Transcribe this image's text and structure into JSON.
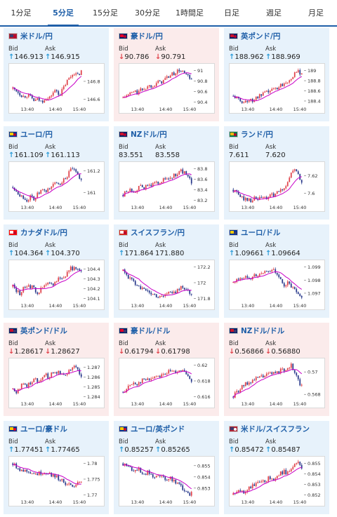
{
  "tabs": [
    "1分足",
    "5分足",
    "15分足",
    "30分足",
    "1時間足",
    "日足",
    "週足",
    "月足"
  ],
  "active_tab": 1,
  "bid_label": "Bid",
  "ask_label": "Ask",
  "colors": {
    "accent": "#1f5fa8",
    "up_arrow": "#2a9bd8",
    "down_arrow": "#e0424a",
    "card_up": "#e7f2fb",
    "card_down": "#fbebeb",
    "candle_up": "#e0424a",
    "candle_down": "#2a3a8c",
    "ma_line": "#c800c8"
  },
  "cards": [
    {
      "pair": "米ドル/円",
      "dir": "up",
      "bid": "146.913",
      "ask": "146.915",
      "bid_arrow": "up",
      "ask_arrow": "up",
      "flag": "us-jp",
      "ticks": [
        "146.8",
        "146.6"
      ],
      "times": [
        "13:40",
        "14:40",
        "15:40"
      ],
      "trend": [
        146.72,
        146.7,
        146.66,
        146.63,
        146.65,
        146.62,
        146.58,
        146.6,
        146.57,
        146.62,
        146.6,
        146.67,
        146.7,
        146.65,
        146.72,
        146.8,
        146.85,
        146.9,
        146.86,
        146.92
      ]
    },
    {
      "pair": "豪ドル/円",
      "dir": "down",
      "bid": "90.786",
      "ask": "90.791",
      "bid_arrow": "down",
      "ask_arrow": "down",
      "flag": "au-jp",
      "ticks": [
        "91",
        "90.8",
        "90.6",
        "90.4"
      ],
      "times": [
        "13:40",
        "14:40",
        "15:40"
      ],
      "trend": [
        90.48,
        90.52,
        90.56,
        90.6,
        90.58,
        90.63,
        90.66,
        90.7,
        90.72,
        90.75,
        90.78,
        90.8,
        90.86,
        90.9,
        90.94,
        90.98,
        91.0,
        90.95,
        90.88,
        90.8
      ]
    },
    {
      "pair": "英ポンド/円",
      "dir": "up",
      "bid": "188.962",
      "ask": "188.969",
      "bid_arrow": "up",
      "ask_arrow": "up",
      "flag": "gb-jp",
      "ticks": [
        "189",
        "188.8",
        "188.6",
        "188.4"
      ],
      "times": [
        "13:40",
        "14:40",
        "15:40"
      ],
      "trend": [
        188.5,
        188.45,
        188.4,
        188.38,
        188.42,
        188.4,
        188.45,
        188.48,
        188.52,
        188.55,
        188.6,
        188.62,
        188.66,
        188.7,
        188.75,
        188.8,
        188.86,
        188.92,
        188.97,
        188.96
      ]
    },
    {
      "pair": "ユーロ/円",
      "dir": "up",
      "bid": "161.109",
      "ask": "161.113",
      "bid_arrow": "up",
      "ask_arrow": "up",
      "flag": "eu-jp",
      "ticks": [
        "161.2",
        "161"
      ],
      "times": [
        "13:40",
        "14:40",
        "15:40"
      ],
      "trend": [
        161.05,
        161.02,
        160.98,
        160.95,
        160.93,
        160.96,
        160.94,
        160.99,
        161.02,
        161.0,
        161.04,
        161.06,
        161.1,
        161.08,
        161.12,
        161.15,
        161.2,
        161.22,
        161.15,
        161.11
      ]
    },
    {
      "pair": "NZドル/円",
      "dir": "up",
      "bid": "83.551",
      "ask": "83.558",
      "bid_arrow": "",
      "ask_arrow": "",
      "flag": "nz-jp",
      "ticks": [
        "83.8",
        "83.6",
        "83.4",
        "83.2"
      ],
      "times": [
        "13:40",
        "14:40",
        "15:40"
      ],
      "trend": [
        83.3,
        83.36,
        83.4,
        83.38,
        83.42,
        83.45,
        83.44,
        83.48,
        83.5,
        83.52,
        83.55,
        83.58,
        83.6,
        83.62,
        83.66,
        83.7,
        83.76,
        83.72,
        83.62,
        83.55
      ]
    },
    {
      "pair": "ランド/円",
      "dir": "up",
      "bid": "7.611",
      "ask": "7.620",
      "bid_arrow": "",
      "ask_arrow": "",
      "flag": "za-jp",
      "ticks": [
        "7.62",
        "7.6"
      ],
      "times": [
        "13:40",
        "14:40",
        "15:40"
      ],
      "trend": [
        7.604,
        7.6,
        7.596,
        7.594,
        7.593,
        7.592,
        7.594,
        7.593,
        7.595,
        7.594,
        7.596,
        7.598,
        7.6,
        7.602,
        7.606,
        7.612,
        7.622,
        7.628,
        7.62,
        7.612
      ]
    },
    {
      "pair": "カナダドル/円",
      "dir": "up",
      "bid": "104.364",
      "ask": "104.370",
      "bid_arrow": "up",
      "ask_arrow": "up",
      "flag": "ca-jp",
      "ticks": [
        "104.4",
        "104.3",
        "104.2",
        "104.1"
      ],
      "times": [
        "13:40",
        "14:40",
        "15:40"
      ],
      "trend": [
        104.22,
        104.18,
        104.15,
        104.2,
        104.24,
        104.22,
        104.19,
        104.16,
        104.2,
        104.23,
        104.25,
        104.24,
        104.28,
        104.32,
        104.3,
        104.36,
        104.42,
        104.4,
        104.38,
        104.36
      ]
    },
    {
      "pair": "スイスフラン/円",
      "dir": "up",
      "bid": "171.864",
      "ask": "171.880",
      "bid_arrow": "up",
      "ask_arrow": "",
      "flag": "ch-jp",
      "ticks": [
        "172.2",
        "172",
        "171.8"
      ],
      "times": [
        "13:40",
        "14:40",
        "15:40"
      ],
      "trend": [
        172.15,
        172.1,
        172.05,
        172.0,
        171.98,
        171.94,
        171.9,
        171.88,
        171.86,
        171.84,
        171.82,
        171.84,
        171.86,
        171.88,
        171.86,
        171.9,
        171.96,
        171.92,
        171.88,
        171.86
      ]
    },
    {
      "pair": "ユーロ/ドル",
      "dir": "up",
      "bid": "1.09661",
      "ask": "1.09664",
      "bid_arrow": "up",
      "ask_arrow": "up",
      "flag": "eu-us",
      "ticks": [
        "1.099",
        "1.098",
        "1.097"
      ],
      "times": [
        "13:40",
        "14:40",
        "15:40"
      ],
      "trend": [
        1.0978,
        1.098,
        1.0982,
        1.0981,
        1.0983,
        1.0982,
        1.0984,
        1.0983,
        1.0985,
        1.0987,
        1.0986,
        1.099,
        1.0984,
        1.098,
        1.0976,
        1.0978,
        1.0975,
        1.0972,
        1.0968,
        1.0966
      ]
    },
    {
      "pair": "英ポンド/ドル",
      "dir": "down",
      "bid": "1.28617",
      "ask": "1.28627",
      "bid_arrow": "down",
      "ask_arrow": "down",
      "flag": "gb-us",
      "ticks": [
        "1.287",
        "1.286",
        "1.285",
        "1.284"
      ],
      "times": [
        "13:40",
        "14:40",
        "15:40"
      ],
      "trend": [
        1.2848,
        1.2845,
        1.285,
        1.2853,
        1.2851,
        1.2855,
        1.2858,
        1.2856,
        1.286,
        1.2862,
        1.286,
        1.2864,
        1.2866,
        1.2864,
        1.2862,
        1.2865,
        1.2868,
        1.2872,
        1.2866,
        1.2862
      ]
    },
    {
      "pair": "豪ドル/ドル",
      "dir": "down",
      "bid": "0.61794",
      "ask": "0.61798",
      "bid_arrow": "down",
      "ask_arrow": "down",
      "flag": "au-us",
      "ticks": [
        "0.62",
        "0.618",
        "0.616"
      ],
      "times": [
        "13:40",
        "14:40",
        "15:40"
      ],
      "trend": [
        0.6166,
        0.617,
        0.6174,
        0.6178,
        0.6176,
        0.618,
        0.6182,
        0.6181,
        0.6184,
        0.6186,
        0.6187,
        0.6188,
        0.619,
        0.6192,
        0.6191,
        0.6193,
        0.6195,
        0.619,
        0.6184,
        0.6179
      ]
    },
    {
      "pair": "NZドル/ドル",
      "dir": "down",
      "bid": "0.56866",
      "ask": "0.56880",
      "bid_arrow": "down",
      "ask_arrow": "down",
      "flag": "nz-us",
      "ticks": [
        "0.57",
        "0.568"
      ],
      "times": [
        "13:40",
        "14:40",
        "15:40"
      ],
      "trend": [
        0.5678,
        0.5682,
        0.5685,
        0.5688,
        0.569,
        0.5692,
        0.5693,
        0.5695,
        0.5696,
        0.5697,
        0.5698,
        0.5699,
        0.57,
        0.5701,
        0.5702,
        0.5704,
        0.5706,
        0.57,
        0.5692,
        0.5687
      ]
    },
    {
      "pair": "ユーロ/豪ドル",
      "dir": "up",
      "bid": "1.77451",
      "ask": "1.77465",
      "bid_arrow": "up",
      "ask_arrow": "up",
      "flag": "eu-au",
      "ticks": [
        "1.78",
        "1.775",
        "1.77"
      ],
      "times": [
        "13:40",
        "14:40",
        "15:40"
      ],
      "trend": [
        1.78,
        1.779,
        1.7782,
        1.7776,
        1.7778,
        1.7772,
        1.7768,
        1.7766,
        1.777,
        1.7772,
        1.777,
        1.7762,
        1.7758,
        1.775,
        1.7742,
        1.7735,
        1.7728,
        1.772,
        1.7735,
        1.7745
      ]
    },
    {
      "pair": "ユーロ/英ポンド",
      "dir": "up",
      "bid": "0.85257",
      "ask": "0.85265",
      "bid_arrow": "up",
      "ask_arrow": "up",
      "flag": "eu-gb",
      "ticks": [
        "0.855",
        "0.854",
        "0.853"
      ],
      "times": [
        "13:40",
        "14:40",
        "15:40"
      ],
      "trend": [
        0.8552,
        0.855,
        0.8548,
        0.8546,
        0.8547,
        0.8545,
        0.8543,
        0.8544,
        0.8542,
        0.854,
        0.8541,
        0.8539,
        0.8538,
        0.854,
        0.8537,
        0.8535,
        0.8532,
        0.8528,
        0.8524,
        0.8526
      ]
    },
    {
      "pair": "米ドル/スイスフラン",
      "dir": "up",
      "bid": "0.85472",
      "ask": "0.85487",
      "bid_arrow": "up",
      "ask_arrow": "up",
      "flag": "us-ch",
      "ticks": [
        "0.855",
        "0.854",
        "0.853",
        "0.852"
      ],
      "times": [
        "13:40",
        "14:40",
        "15:40"
      ],
      "trend": [
        0.852,
        0.8522,
        0.8524,
        0.8523,
        0.8526,
        0.8528,
        0.853,
        0.8532,
        0.8531,
        0.8534,
        0.8536,
        0.8535,
        0.8538,
        0.854,
        0.8542,
        0.8541,
        0.8544,
        0.8548,
        0.855,
        0.8547
      ]
    }
  ]
}
